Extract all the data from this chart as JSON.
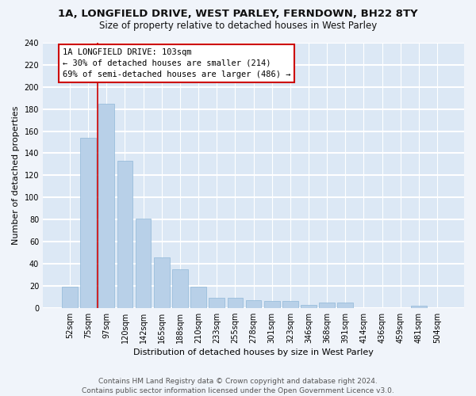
{
  "title1": "1A, LONGFIELD DRIVE, WEST PARLEY, FERNDOWN, BH22 8TY",
  "title2": "Size of property relative to detached houses in West Parley",
  "xlabel": "Distribution of detached houses by size in West Parley",
  "ylabel": "Number of detached properties",
  "bar_color": "#b8d0e8",
  "bar_edge_color": "#90b8d8",
  "categories": [
    "52sqm",
    "75sqm",
    "97sqm",
    "120sqm",
    "142sqm",
    "165sqm",
    "188sqm",
    "210sqm",
    "233sqm",
    "255sqm",
    "278sqm",
    "301sqm",
    "323sqm",
    "346sqm",
    "368sqm",
    "391sqm",
    "414sqm",
    "436sqm",
    "459sqm",
    "481sqm",
    "504sqm"
  ],
  "values": [
    19,
    154,
    185,
    133,
    81,
    46,
    35,
    19,
    9,
    9,
    7,
    6,
    6,
    3,
    5,
    5,
    0,
    0,
    0,
    2,
    0
  ],
  "vline_pos": 1.5,
  "vline_color": "#cc0000",
  "annot_line1": "1A LONGFIELD DRIVE: 103sqm",
  "annot_line2": "← 30% of detached houses are smaller (214)",
  "annot_line3": "69% of semi-detached houses are larger (486) →",
  "ylim_max": 240,
  "ytick_step": 20,
  "footer_line1": "Contains HM Land Registry data © Crown copyright and database right 2024.",
  "footer_line2": "Contains public sector information licensed under the Open Government Licence v3.0.",
  "ax_bg_color": "#dce8f5",
  "fig_bg_color": "#f0f4fa",
  "grid_color": "#ffffff",
  "title_fontsize": 9.5,
  "subtitle_fontsize": 8.5,
  "tick_fontsize": 7,
  "ylabel_fontsize": 8,
  "xlabel_fontsize": 8,
  "footer_fontsize": 6.5,
  "annot_fontsize": 7.5
}
